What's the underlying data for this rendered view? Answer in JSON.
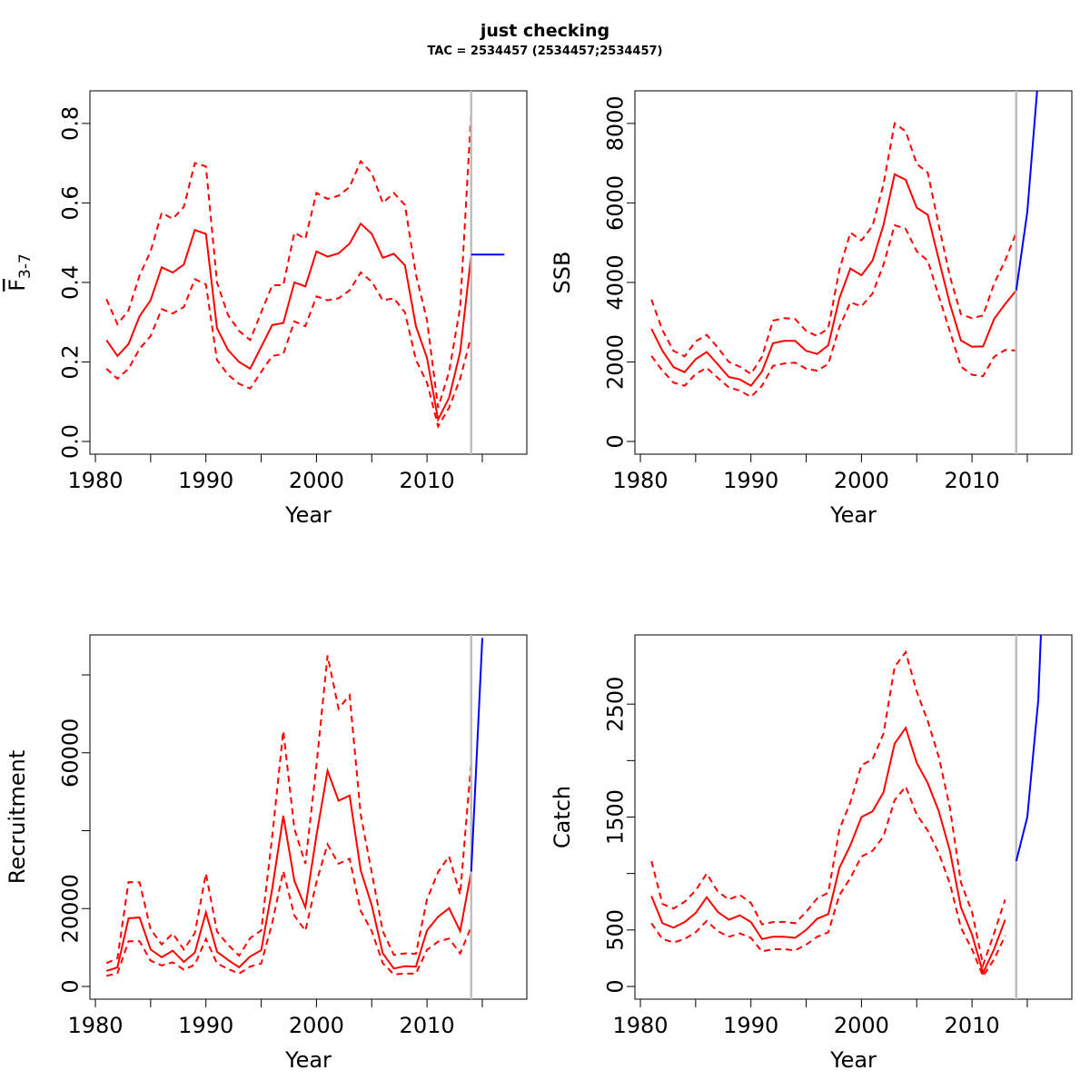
{
  "page": {
    "title": "just checking",
    "subtitle": "TAC = 2534457 (2534457;2534457)"
  },
  "colors": {
    "estimate": "#ff0000",
    "forecast": "#0000ff",
    "divider": "#bebebe",
    "axis": "#000000"
  },
  "divider_year": 2014,
  "chart_data": [
    {
      "id": "fbar",
      "type": "line",
      "xlabel": "Year",
      "ylabel": "F",
      "ylabel_sub": "3-7",
      "xlim": [
        1981,
        2017
      ],
      "ylim": [
        0,
        0.85
      ],
      "xticks": [
        1980,
        1990,
        2000,
        2010
      ],
      "xtick_marks": [
        1980,
        1985,
        1990,
        1995,
        2000,
        2005,
        2010,
        2015
      ],
      "yticks": [
        0,
        0.2,
        0.4,
        0.6,
        0.8
      ],
      "ytick_labels": [
        "0.0",
        "0.2",
        "0.4",
        "0.6",
        "0.8"
      ],
      "x": [
        1981,
        1982,
        1983,
        1984,
        1985,
        1986,
        1987,
        1988,
        1989,
        1990,
        1991,
        1992,
        1993,
        1994,
        1995,
        1996,
        1997,
        1998,
        1999,
        2000,
        2001,
        2002,
        2003,
        2004,
        2005,
        2006,
        2007,
        2008,
        2009,
        2010,
        2011,
        2012,
        2013,
        2014
      ],
      "estimate": [
        0.255,
        0.215,
        0.245,
        0.315,
        0.355,
        0.438,
        0.425,
        0.445,
        0.532,
        0.522,
        0.285,
        0.23,
        0.2,
        0.183,
        0.238,
        0.293,
        0.298,
        0.4,
        0.39,
        0.478,
        0.465,
        0.473,
        0.498,
        0.548,
        0.522,
        0.462,
        0.472,
        0.443,
        0.29,
        0.21,
        0.055,
        0.11,
        0.225,
        0.47
      ],
      "upper": [
        0.358,
        0.295,
        0.33,
        0.418,
        0.478,
        0.575,
        0.56,
        0.59,
        0.7,
        0.692,
        0.4,
        0.318,
        0.278,
        0.255,
        0.325,
        0.393,
        0.393,
        0.525,
        0.51,
        0.625,
        0.61,
        0.618,
        0.64,
        0.705,
        0.675,
        0.6,
        0.625,
        0.595,
        0.42,
        0.305,
        0.085,
        0.175,
        0.338,
        0.83
      ],
      "lower": [
        0.183,
        0.158,
        0.183,
        0.233,
        0.265,
        0.333,
        0.322,
        0.338,
        0.408,
        0.395,
        0.205,
        0.168,
        0.145,
        0.133,
        0.175,
        0.215,
        0.22,
        0.302,
        0.29,
        0.365,
        0.355,
        0.36,
        0.38,
        0.425,
        0.402,
        0.355,
        0.36,
        0.325,
        0.205,
        0.148,
        0.038,
        0.085,
        0.158,
        0.265
      ],
      "forecast_x": [
        2014,
        2015,
        2016,
        2017
      ],
      "forecast": [
        0.47,
        0.47,
        0.47,
        0.47
      ]
    },
    {
      "id": "ssb",
      "type": "line",
      "xlabel": "Year",
      "ylabel": "SSB",
      "xlim": [
        1981,
        2017
      ],
      "ylim": [
        0,
        8500
      ],
      "xticks": [
        1980,
        1990,
        2000,
        2010
      ],
      "xtick_marks": [
        1980,
        1985,
        1990,
        1995,
        2000,
        2005,
        2010,
        2015
      ],
      "yticks": [
        0,
        2000,
        4000,
        6000,
        8000
      ],
      "ytick_labels": [
        "0",
        "2000",
        "4000",
        "6000",
        "8000"
      ],
      "x": [
        1981,
        1982,
        1983,
        1984,
        1985,
        1986,
        1987,
        1988,
        1989,
        1990,
        1991,
        1992,
        1993,
        1994,
        1995,
        1996,
        1997,
        1998,
        1999,
        2000,
        2001,
        2002,
        2003,
        2004,
        2005,
        2006,
        2007,
        2008,
        2009,
        2010,
        2011,
        2012,
        2013,
        2014
      ],
      "estimate": [
        2830,
        2280,
        1870,
        1740,
        2070,
        2250,
        1940,
        1620,
        1560,
        1400,
        1760,
        2470,
        2530,
        2530,
        2280,
        2200,
        2420,
        3600,
        4350,
        4180,
        4550,
        5450,
        6720,
        6580,
        5880,
        5700,
        4570,
        3460,
        2540,
        2380,
        2390,
        3080,
        3460,
        3800
      ],
      "upper": [
        3570,
        2800,
        2280,
        2140,
        2520,
        2680,
        2360,
        2000,
        1880,
        1700,
        2130,
        3040,
        3100,
        3080,
        2780,
        2650,
        2850,
        4320,
        5250,
        5060,
        5420,
        6480,
        8000,
        7800,
        6980,
        6760,
        5430,
        4150,
        3200,
        3100,
        3170,
        3970,
        4550,
        5250
      ],
      "lower": [
        2150,
        1780,
        1480,
        1400,
        1700,
        1850,
        1600,
        1360,
        1280,
        1120,
        1400,
        1900,
        1960,
        1980,
        1830,
        1780,
        1950,
        2880,
        3500,
        3400,
        3720,
        4450,
        5440,
        5350,
        4780,
        4550,
        3650,
        2770,
        1880,
        1680,
        1640,
        2130,
        2300,
        2290
      ],
      "forecast_x": [
        2014,
        2015,
        2016
      ],
      "forecast": [
        3800,
        5780,
        9200
      ]
    },
    {
      "id": "recruitment",
      "type": "line",
      "xlabel": "Year",
      "ylabel": "Recruitment",
      "xlim": [
        1981,
        2017
      ],
      "ylim": [
        0,
        87000
      ],
      "xticks": [
        1980,
        1990,
        2000,
        2010
      ],
      "xtick_marks": [
        1980,
        1985,
        1990,
        1995,
        2000,
        2005,
        2010,
        2015
      ],
      "yticks": [
        0,
        20000,
        40000,
        60000,
        80000
      ],
      "ytick_labels": [
        "0",
        "20000",
        "",
        "60000",
        ""
      ],
      "x": [
        1981,
        1982,
        1983,
        1984,
        1985,
        1986,
        1987,
        1988,
        1989,
        1990,
        1991,
        1992,
        1993,
        1994,
        1995,
        1996,
        1997,
        1998,
        1999,
        2000,
        2001,
        2002,
        2003,
        2004,
        2005,
        2006,
        2007,
        2008,
        2009,
        2010,
        2011,
        2012,
        2013,
        2014
      ],
      "estimate": [
        4000,
        4900,
        17500,
        17700,
        9500,
        7500,
        9200,
        6300,
        8700,
        19000,
        8900,
        6800,
        4900,
        7700,
        9300,
        25100,
        43800,
        27100,
        20300,
        38800,
        55400,
        47700,
        49000,
        29800,
        20800,
        8500,
        4600,
        5200,
        5100,
        14400,
        17900,
        20100,
        14200,
        29500
      ],
      "upper": [
        6000,
        7200,
        26800,
        26700,
        14700,
        10800,
        13600,
        9500,
        13700,
        29000,
        14100,
        10700,
        7900,
        12400,
        14400,
        38500,
        65600,
        40500,
        31500,
        56800,
        85000,
        71300,
        74800,
        44100,
        29200,
        14200,
        8100,
        8500,
        8400,
        22400,
        29400,
        33400,
        23600,
        57800
      ],
      "lower": [
        2700,
        3400,
        11600,
        11600,
        6600,
        5400,
        6200,
        4300,
        5600,
        12200,
        5900,
        4500,
        3300,
        5100,
        5900,
        16300,
        29600,
        18200,
        14300,
        26800,
        36500,
        31500,
        32800,
        19400,
        14200,
        6000,
        3100,
        3300,
        3300,
        9400,
        11500,
        12300,
        8500,
        15300
      ],
      "forecast_x": [
        2014,
        2015
      ],
      "forecast": [
        29500,
        89500
      ]
    },
    {
      "id": "catch",
      "type": "line",
      "xlabel": "Year",
      "ylabel": "Catch",
      "xlim": [
        1981,
        2017
      ],
      "ylim": [
        0,
        3000
      ],
      "xticks": [
        1980,
        1990,
        2000,
        2010
      ],
      "xtick_marks": [
        1980,
        1985,
        1990,
        1995,
        2000,
        2005,
        2010,
        2015
      ],
      "yticks": [
        0,
        500,
        1000,
        1500,
        2000,
        2500
      ],
      "ytick_labels": [
        "0",
        "500",
        "",
        "1500",
        "",
        "2500"
      ],
      "x": [
        1981,
        1982,
        1983,
        1984,
        1985,
        1986,
        1987,
        1988,
        1989,
        1990,
        1991,
        1992,
        1993,
        1994,
        1995,
        1996,
        1997,
        1998,
        1999,
        2000,
        2001,
        2002,
        2003,
        2004,
        2005,
        2006,
        2007,
        2008,
        2009,
        2010,
        2011,
        2012,
        2013
      ],
      "estimate": [
        800,
        560,
        520,
        570,
        650,
        790,
        660,
        590,
        630,
        570,
        420,
        440,
        440,
        430,
        500,
        600,
        640,
        1050,
        1250,
        1500,
        1550,
        1720,
        2150,
        2290,
        1980,
        1800,
        1550,
        1200,
        700,
        460,
        120,
        330,
        590
      ],
      "upper": [
        1110,
        730,
        690,
        750,
        850,
        1000,
        840,
        770,
        810,
        740,
        550,
        570,
        570,
        560,
        660,
        780,
        830,
        1390,
        1630,
        1960,
        2010,
        2240,
        2830,
        2960,
        2610,
        2350,
        2030,
        1580,
        920,
        660,
        190,
        470,
        770
      ],
      "lower": [
        560,
        420,
        390,
        420,
        480,
        580,
        490,
        440,
        470,
        430,
        310,
        330,
        330,
        320,
        370,
        440,
        480,
        810,
        960,
        1150,
        1200,
        1330,
        1650,
        1770,
        1520,
        1380,
        1180,
        910,
        520,
        330,
        90,
        240,
        450
      ],
      "forecast_x": [
        2014,
        2015,
        2016,
        2017
      ],
      "forecast": [
        1110,
        1500,
        2540,
        5000
      ]
    }
  ]
}
